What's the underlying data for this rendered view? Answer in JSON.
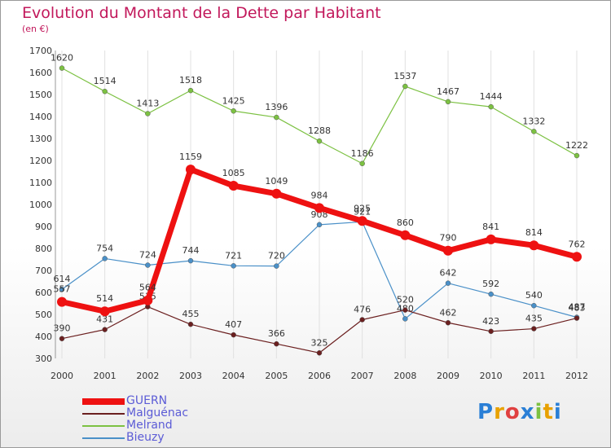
{
  "title": "Evolution du Montant de la Dette par Habitant",
  "unit": "(en €)",
  "brand": "Proxiti",
  "chart_data": {
    "type": "line",
    "title": "Evolution du Montant de la Dette par Habitant",
    "ylabel": "(en €)",
    "x": [
      "2000",
      "2001",
      "2002",
      "2003",
      "2004",
      "2005",
      "2006",
      "2007",
      "2008",
      "2009",
      "2010",
      "2011",
      "2012"
    ],
    "ylim": [
      300,
      1700
    ],
    "yticks": [
      300,
      400,
      500,
      600,
      700,
      800,
      900,
      1000,
      1100,
      1200,
      1300,
      1400,
      1500,
      1600,
      1700
    ],
    "grid": true,
    "legend_position": "bottom-left",
    "series": [
      {
        "name": "Bieuzy",
        "color": "#4a90c8",
        "values": [
          614,
          754,
          724,
          744,
          721,
          720,
          908,
          921,
          480,
          642,
          592,
          540,
          487
        ]
      },
      {
        "name": "Melrand",
        "color": "#7cc142",
        "values": [
          1620,
          1514,
          1413,
          1518,
          1425,
          1396,
          1288,
          1186,
          1537,
          1467,
          1444,
          1332,
          1222
        ]
      },
      {
        "name": "Malguénac",
        "color": "#6b1f1f",
        "values": [
          390,
          431,
          535,
          455,
          407,
          366,
          325,
          476,
          520,
          462,
          423,
          435,
          483
        ]
      },
      {
        "name": "GUERN",
        "color": "#ee1111",
        "values": [
          557,
          514,
          564,
          1159,
          1085,
          1049,
          984,
          925,
          860,
          790,
          841,
          814,
          762
        ]
      }
    ]
  }
}
